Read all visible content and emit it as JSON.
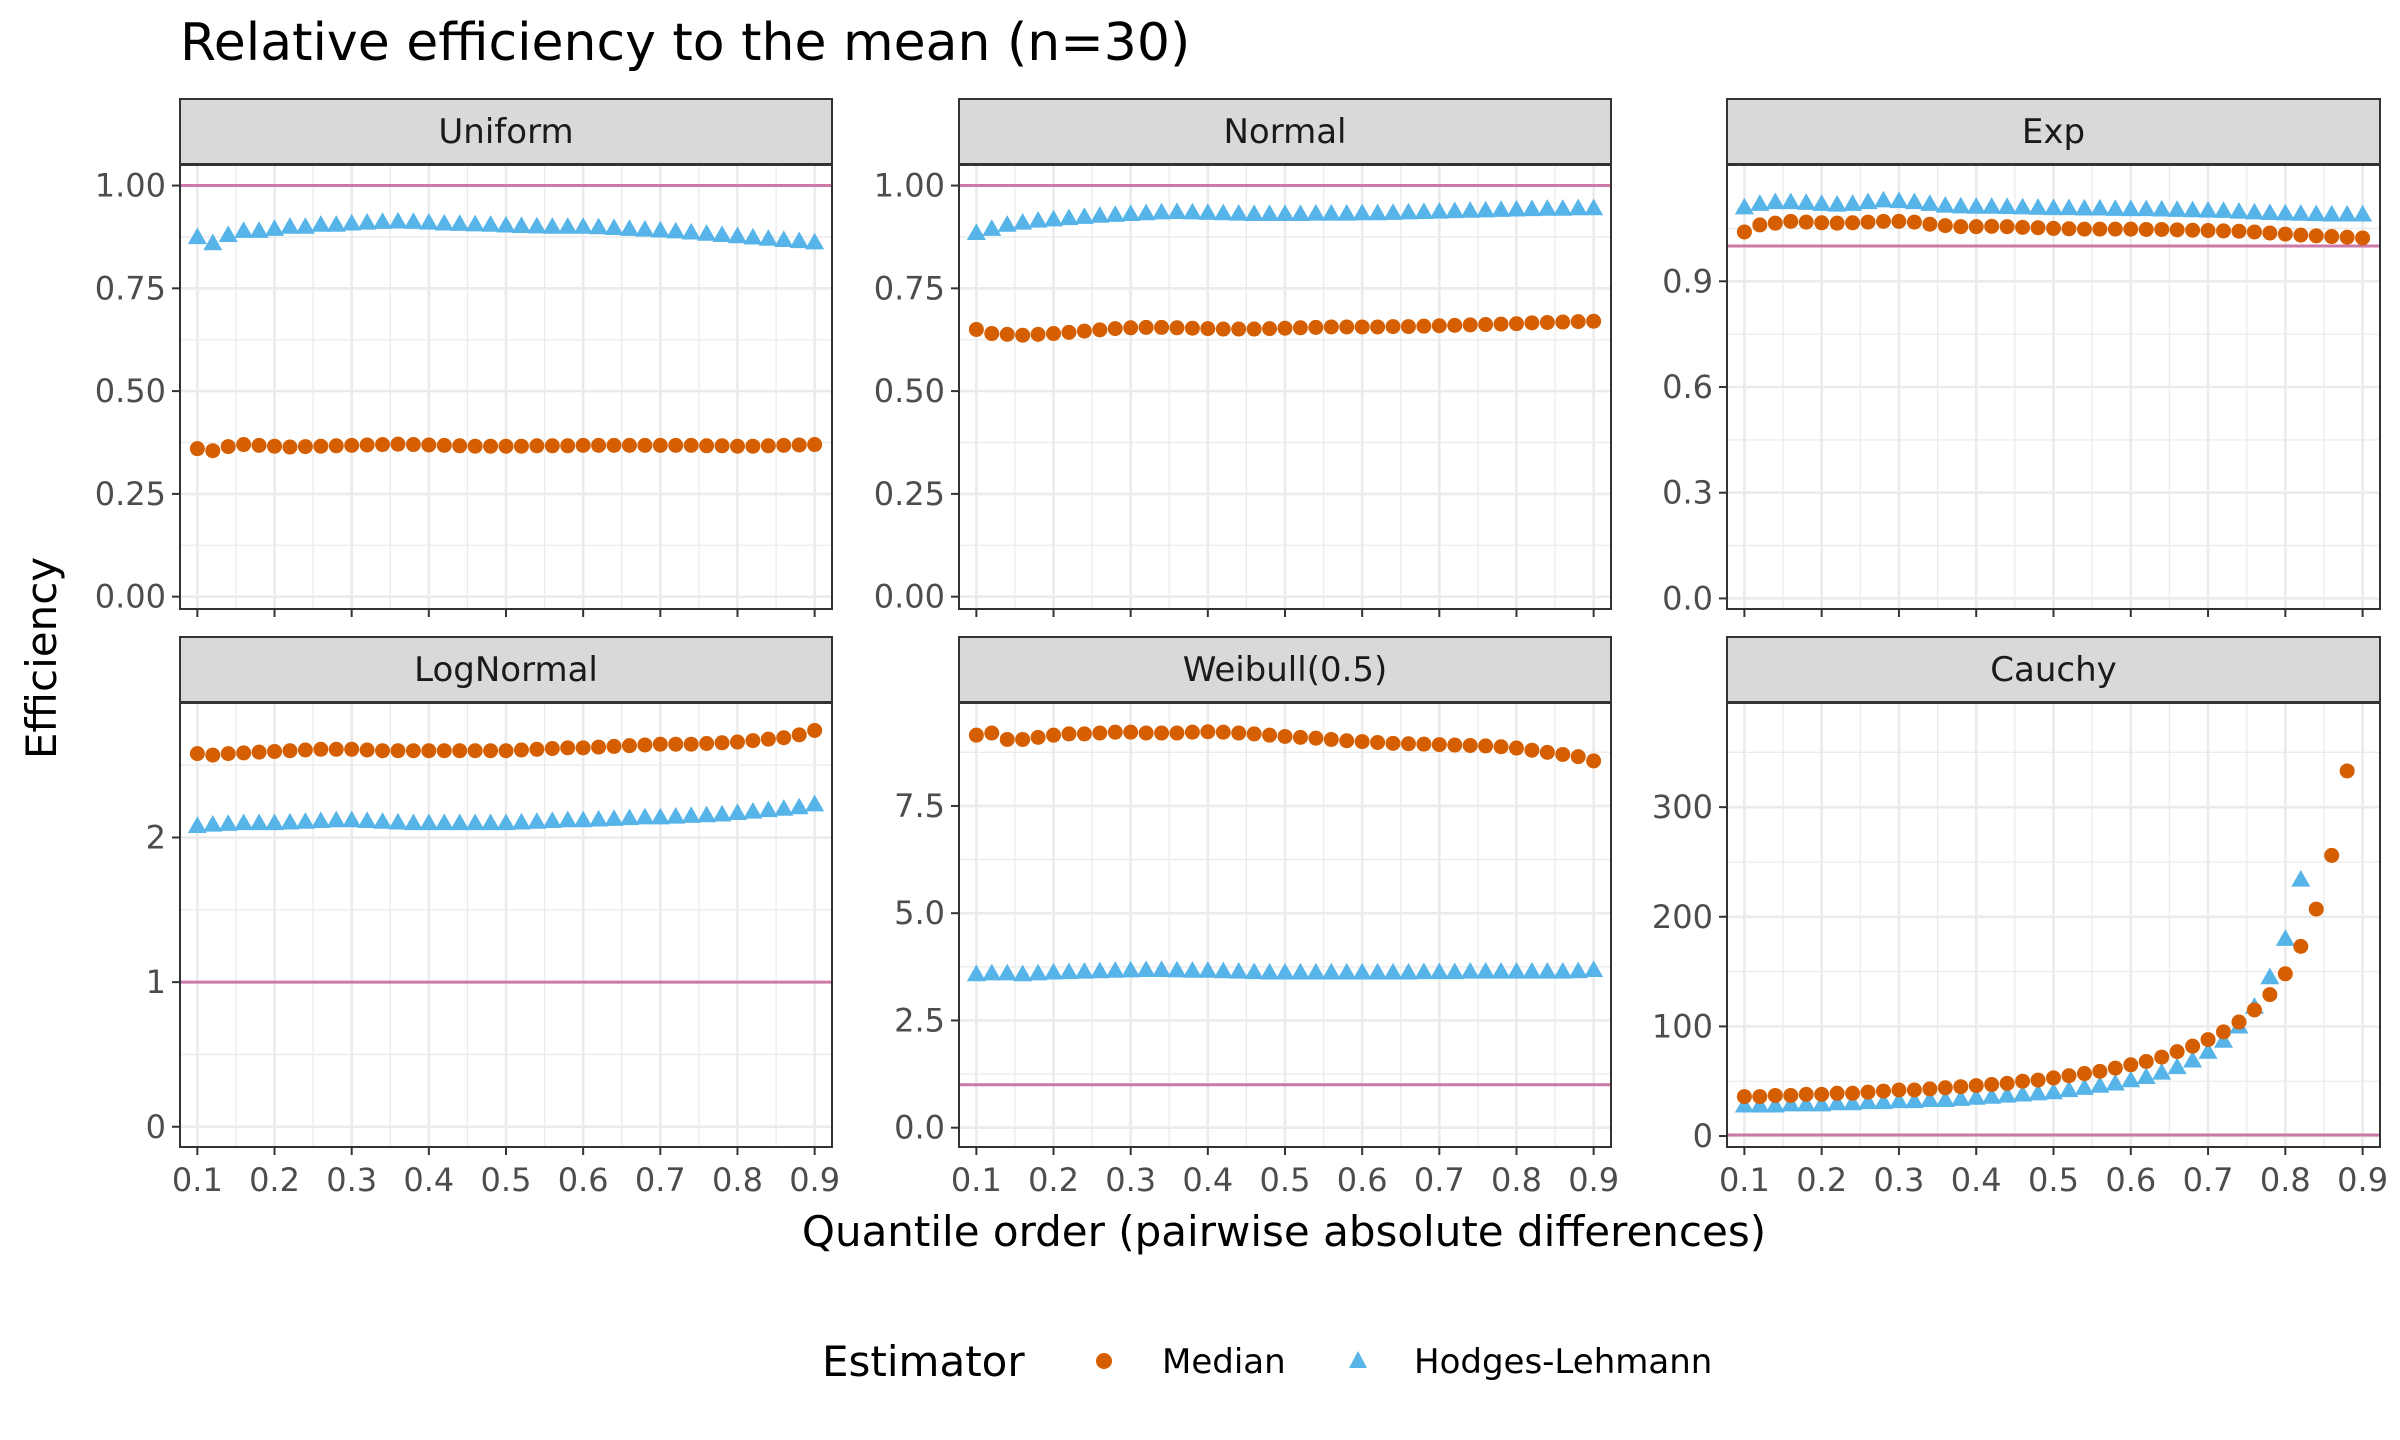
{
  "chart_data": {
    "type": "scatter",
    "title": "Relative efficiency to the mean (n=30)",
    "xlabel": "Quantile order (pairwise absolute differences)",
    "ylabel": "Efficiency",
    "x_ticks": [
      "0.1",
      "0.2",
      "0.3",
      "0.4",
      "0.5",
      "0.6",
      "0.7",
      "0.8",
      "0.9"
    ],
    "x": [
      0.1,
      0.12,
      0.14,
      0.16,
      0.18,
      0.2,
      0.22,
      0.24,
      0.26,
      0.28,
      0.3,
      0.32,
      0.34,
      0.36,
      0.38,
      0.4,
      0.42,
      0.44,
      0.46,
      0.48,
      0.5,
      0.52,
      0.54,
      0.56,
      0.58,
      0.6,
      0.62,
      0.64,
      0.66,
      0.68,
      0.7,
      0.72,
      0.74,
      0.76,
      0.78,
      0.8,
      0.82,
      0.84,
      0.86,
      0.88,
      0.9
    ],
    "reference_line": 1,
    "colors": {
      "median": "#d55e00",
      "hodges_lehmann": "#56b4e9",
      "reference": "#cc79a7",
      "strip": "#d9d9d9",
      "grid": "#ebebeb"
    },
    "legend": {
      "title": "Estimator",
      "position": "bottom",
      "items": [
        {
          "label": "Median",
          "shape": "circle",
          "color": "#d55e00"
        },
        {
          "label": "Hodges-Lehmann",
          "shape": "triangle",
          "color": "#56b4e9"
        }
      ]
    },
    "panels": [
      {
        "name": "Uniform",
        "ylim": [
          -0.03,
          1.05
        ],
        "y_ticks": [
          0,
          0.25,
          0.5,
          0.75,
          1
        ],
        "y_tick_labels": [
          "0.00",
          "0.25",
          "0.50",
          "0.75",
          "1.00"
        ],
        "median": [
          0.36,
          0.355,
          0.365,
          0.37,
          0.368,
          0.366,
          0.364,
          0.365,
          0.366,
          0.367,
          0.368,
          0.369,
          0.37,
          0.371,
          0.37,
          0.369,
          0.368,
          0.367,
          0.366,
          0.366,
          0.366,
          0.366,
          0.367,
          0.367,
          0.367,
          0.368,
          0.368,
          0.368,
          0.368,
          0.368,
          0.368,
          0.368,
          0.368,
          0.367,
          0.367,
          0.366,
          0.366,
          0.367,
          0.368,
          0.369,
          0.37
        ],
        "hodges_lehmann": [
          0.875,
          0.86,
          0.88,
          0.89,
          0.89,
          0.895,
          0.9,
          0.9,
          0.905,
          0.905,
          0.908,
          0.91,
          0.912,
          0.913,
          0.912,
          0.91,
          0.908,
          0.907,
          0.906,
          0.905,
          0.903,
          0.902,
          0.901,
          0.9,
          0.9,
          0.9,
          0.899,
          0.897,
          0.895,
          0.893,
          0.891,
          0.889,
          0.886,
          0.883,
          0.88,
          0.877,
          0.874,
          0.871,
          0.868,
          0.865,
          0.862
        ]
      },
      {
        "name": "Normal",
        "ylim": [
          -0.03,
          1.05
        ],
        "y_ticks": [
          0,
          0.25,
          0.5,
          0.75,
          1
        ],
        "y_tick_labels": [
          "0.00",
          "0.25",
          "0.50",
          "0.75",
          "1.00"
        ],
        "median": [
          0.65,
          0.64,
          0.638,
          0.636,
          0.638,
          0.64,
          0.643,
          0.646,
          0.649,
          0.652,
          0.654,
          0.655,
          0.655,
          0.654,
          0.653,
          0.652,
          0.651,
          0.651,
          0.651,
          0.652,
          0.653,
          0.654,
          0.655,
          0.656,
          0.656,
          0.656,
          0.656,
          0.657,
          0.657,
          0.658,
          0.659,
          0.66,
          0.661,
          0.662,
          0.663,
          0.664,
          0.666,
          0.667,
          0.668,
          0.669,
          0.67
        ],
        "hodges_lehmann": [
          0.885,
          0.895,
          0.905,
          0.91,
          0.915,
          0.918,
          0.921,
          0.924,
          0.927,
          0.929,
          0.931,
          0.933,
          0.935,
          0.936,
          0.935,
          0.934,
          0.933,
          0.932,
          0.931,
          0.931,
          0.931,
          0.931,
          0.932,
          0.932,
          0.932,
          0.933,
          0.933,
          0.934,
          0.935,
          0.936,
          0.937,
          0.938,
          0.939,
          0.94,
          0.941,
          0.942,
          0.943,
          0.944,
          0.944,
          0.945,
          0.945
        ]
      },
      {
        "name": "Exp",
        "ylim": [
          -0.03,
          1.23
        ],
        "y_ticks": [
          0,
          0.3,
          0.6,
          0.9
        ],
        "y_tick_labels": [
          "0.0",
          "0.3",
          "0.6",
          "0.9"
        ],
        "median": [
          1.04,
          1.06,
          1.065,
          1.07,
          1.068,
          1.066,
          1.065,
          1.066,
          1.068,
          1.07,
          1.07,
          1.068,
          1.062,
          1.058,
          1.055,
          1.055,
          1.056,
          1.055,
          1.053,
          1.052,
          1.05,
          1.049,
          1.048,
          1.048,
          1.048,
          1.048,
          1.047,
          1.047,
          1.046,
          1.045,
          1.044,
          1.043,
          1.042,
          1.04,
          1.037,
          1.034,
          1.031,
          1.029,
          1.027,
          1.025,
          1.023
        ],
        "hodges_lehmann": [
          1.11,
          1.12,
          1.125,
          1.125,
          1.123,
          1.12,
          1.118,
          1.12,
          1.125,
          1.13,
          1.128,
          1.125,
          1.12,
          1.115,
          1.113,
          1.112,
          1.112,
          1.111,
          1.11,
          1.109,
          1.108,
          1.108,
          1.107,
          1.107,
          1.106,
          1.105,
          1.105,
          1.104,
          1.103,
          1.102,
          1.101,
          1.1,
          1.098,
          1.096,
          1.094,
          1.093,
          1.092,
          1.091,
          1.09,
          1.09,
          1.09
        ]
      },
      {
        "name": "LogNormal",
        "ylim": [
          -0.14,
          2.93
        ],
        "y_ticks": [
          0,
          1,
          2
        ],
        "y_tick_labels": [
          "0",
          "1",
          "2"
        ],
        "median": [
          2.58,
          2.57,
          2.58,
          2.585,
          2.59,
          2.595,
          2.6,
          2.605,
          2.61,
          2.61,
          2.61,
          2.605,
          2.6,
          2.6,
          2.6,
          2.6,
          2.6,
          2.6,
          2.6,
          2.6,
          2.6,
          2.605,
          2.61,
          2.615,
          2.62,
          2.62,
          2.625,
          2.63,
          2.635,
          2.64,
          2.645,
          2.645,
          2.645,
          2.65,
          2.655,
          2.66,
          2.67,
          2.68,
          2.69,
          2.71,
          2.74
        ],
        "hodges_lehmann": [
          2.08,
          2.09,
          2.095,
          2.1,
          2.1,
          2.1,
          2.105,
          2.11,
          2.115,
          2.12,
          2.12,
          2.115,
          2.11,
          2.105,
          2.1,
          2.1,
          2.1,
          2.1,
          2.1,
          2.1,
          2.1,
          2.105,
          2.11,
          2.115,
          2.12,
          2.12,
          2.125,
          2.13,
          2.135,
          2.14,
          2.14,
          2.145,
          2.15,
          2.155,
          2.16,
          2.17,
          2.18,
          2.19,
          2.2,
          2.21,
          2.23
        ]
      },
      {
        "name": "Weibull(0.5)",
        "ylim": [
          -0.45,
          9.9
        ],
        "y_ticks": [
          0,
          2.5,
          5,
          7.5
        ],
        "y_tick_labels": [
          "0.0",
          "2.5",
          "5.0",
          "7.5"
        ],
        "median": [
          9.15,
          9.2,
          9.05,
          9.05,
          9.1,
          9.15,
          9.18,
          9.18,
          9.2,
          9.22,
          9.22,
          9.2,
          9.2,
          9.2,
          9.22,
          9.23,
          9.22,
          9.2,
          9.18,
          9.15,
          9.12,
          9.1,
          9.08,
          9.05,
          9.02,
          9.0,
          8.98,
          8.96,
          8.95,
          8.94,
          8.93,
          8.92,
          8.91,
          8.9,
          8.88,
          8.85,
          8.8,
          8.75,
          8.7,
          8.65,
          8.55
        ],
        "hodges_lehmann": [
          3.58,
          3.6,
          3.6,
          3.58,
          3.6,
          3.62,
          3.63,
          3.64,
          3.65,
          3.66,
          3.67,
          3.68,
          3.68,
          3.67,
          3.66,
          3.66,
          3.65,
          3.64,
          3.63,
          3.62,
          3.62,
          3.62,
          3.62,
          3.62,
          3.62,
          3.62,
          3.62,
          3.62,
          3.62,
          3.63,
          3.63,
          3.63,
          3.64,
          3.64,
          3.64,
          3.64,
          3.64,
          3.64,
          3.64,
          3.65,
          3.68
        ]
      },
      {
        "name": "Cauchy",
        "ylim": [
          -10,
          395
        ],
        "y_ticks": [
          0,
          100,
          200,
          300
        ],
        "y_tick_labels": [
          "0",
          "100",
          "200",
          "300"
        ],
        "median": [
          36,
          36,
          37,
          37,
          38,
          38,
          39,
          39,
          40,
          41,
          42,
          42,
          43,
          44,
          45,
          46,
          47,
          48,
          50,
          51,
          53,
          55,
          57,
          59,
          62,
          65,
          68,
          72,
          77,
          82,
          88,
          95,
          104,
          115,
          129,
          148,
          173,
          207,
          256,
          333,
          null
        ],
        "hodges_lehmann": [
          28,
          28,
          28,
          29,
          29,
          29,
          30,
          30,
          31,
          31,
          32,
          32,
          33,
          33,
          34,
          35,
          36,
          37,
          38,
          39,
          40,
          42,
          44,
          46,
          48,
          51,
          54,
          58,
          63,
          69,
          77,
          87,
          100,
          118,
          145,
          180,
          234,
          null,
          null,
          null,
          null
        ]
      }
    ]
  }
}
